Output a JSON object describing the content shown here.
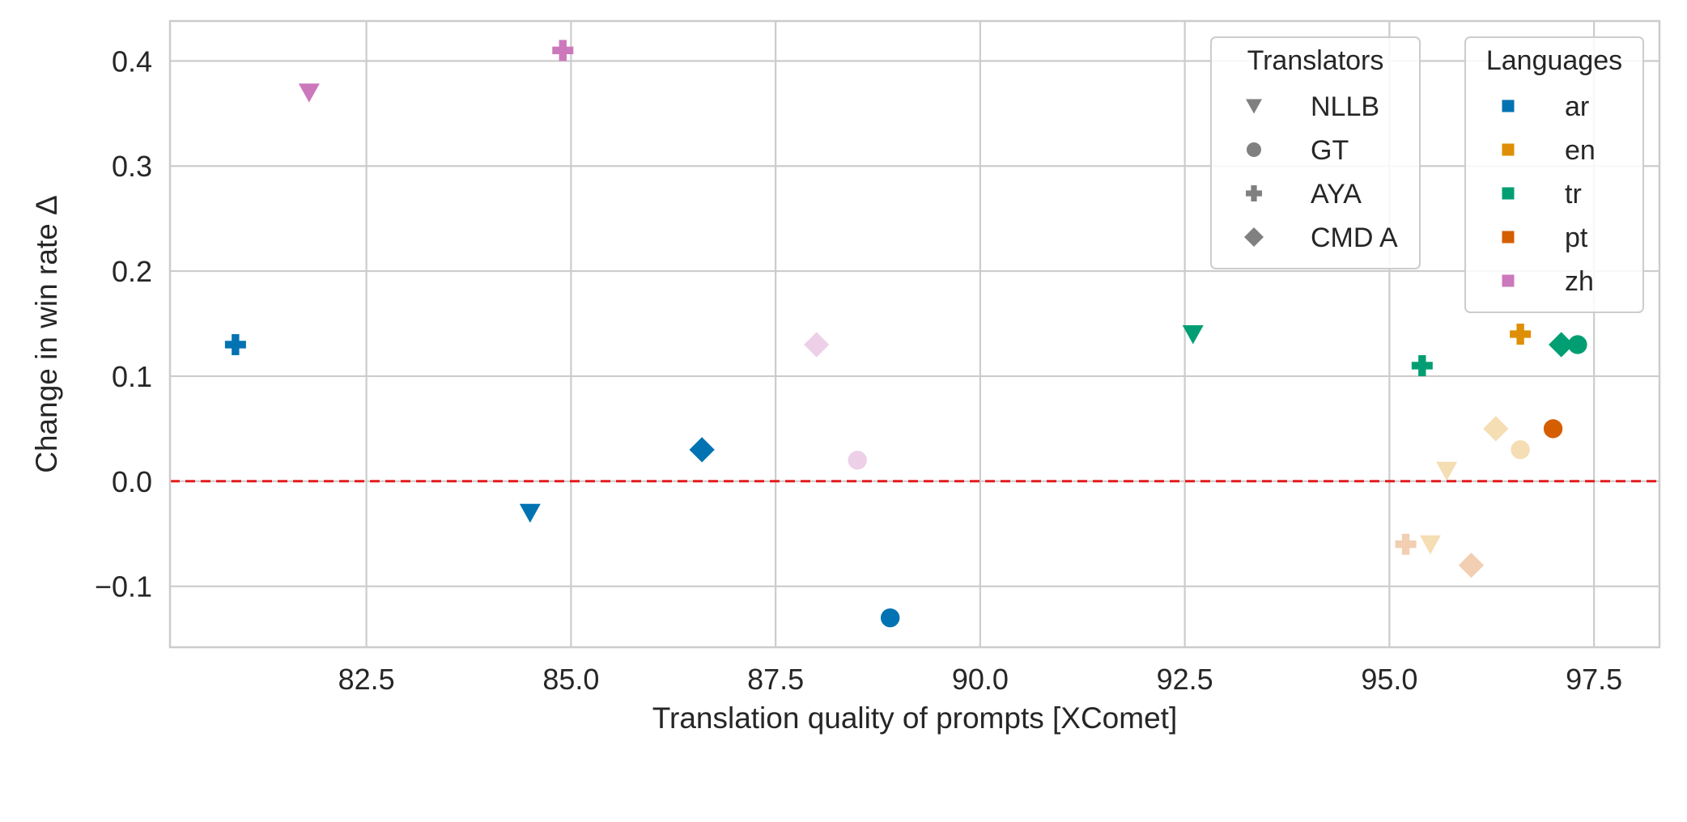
{
  "chart_data": {
    "type": "scatter",
    "title": "",
    "xlabel": "Translation quality of prompts [XComet]",
    "ylabel": "Change in win rate Δ",
    "xlim": [
      80.1,
      98.3
    ],
    "ylim": [
      -0.158,
      0.438
    ],
    "xticks": [
      82.5,
      85.0,
      87.5,
      90.0,
      92.5,
      95.0,
      97.5
    ],
    "xtick_labels": [
      "82.5",
      "85.0",
      "87.5",
      "90.0",
      "92.5",
      "95.0",
      "97.5"
    ],
    "yticks": [
      -0.1,
      0.0,
      0.1,
      0.2,
      0.3,
      0.4
    ],
    "ytick_labels": [
      "−0.1",
      "0.0",
      "0.1",
      "0.2",
      "0.3",
      "0.4"
    ],
    "grid": true,
    "reference_line": {
      "y": 0.0,
      "color": "#e41a1c",
      "style": "dashed"
    },
    "legends": [
      {
        "title": "Translators",
        "placement": "top-right",
        "entries": [
          {
            "label": "NLLB",
            "marker": "triangle-down"
          },
          {
            "label": "GT",
            "marker": "circle"
          },
          {
            "label": "AYA",
            "marker": "plus"
          },
          {
            "label": "CMD A",
            "marker": "diamond"
          }
        ]
      },
      {
        "title": "Languages",
        "placement": "top-right",
        "entries": [
          {
            "label": "ar",
            "color": "#0173b2"
          },
          {
            "label": "en",
            "color": "#de8f05"
          },
          {
            "label": "tr",
            "color": "#029e73"
          },
          {
            "label": "pt",
            "color": "#d55e00"
          },
          {
            "label": "zh",
            "color": "#cc78bc"
          }
        ]
      }
    ],
    "points": [
      {
        "lang": "ar",
        "translator": "AYA",
        "x": 80.9,
        "y": 0.13,
        "color": "#0173b2",
        "alpha": 1.0
      },
      {
        "lang": "ar",
        "translator": "NLLB",
        "x": 84.5,
        "y": -0.03,
        "color": "#0173b2",
        "alpha": 1.0
      },
      {
        "lang": "ar",
        "translator": "CMD A",
        "x": 86.6,
        "y": 0.03,
        "color": "#0173b2",
        "alpha": 1.0
      },
      {
        "lang": "ar",
        "translator": "GT",
        "x": 88.9,
        "y": -0.13,
        "color": "#0173b2",
        "alpha": 1.0
      },
      {
        "lang": "zh",
        "translator": "NLLB",
        "x": 81.8,
        "y": 0.37,
        "color": "#cc78bc",
        "alpha": 1.0
      },
      {
        "lang": "zh",
        "translator": "AYA",
        "x": 84.9,
        "y": 0.41,
        "color": "#cc78bc",
        "alpha": 1.0
      },
      {
        "lang": "zh",
        "translator": "CMD A",
        "x": 88.0,
        "y": 0.13,
        "color": "#cc78bc",
        "alpha": 0.35
      },
      {
        "lang": "zh",
        "translator": "GT",
        "x": 88.5,
        "y": 0.02,
        "color": "#cc78bc",
        "alpha": 0.35
      },
      {
        "lang": "tr",
        "translator": "NLLB",
        "x": 92.6,
        "y": 0.14,
        "color": "#029e73",
        "alpha": 1.0
      },
      {
        "lang": "tr",
        "translator": "AYA",
        "x": 95.4,
        "y": 0.11,
        "color": "#029e73",
        "alpha": 1.0
      },
      {
        "lang": "tr",
        "translator": "CMD A",
        "x": 97.1,
        "y": 0.13,
        "color": "#029e73",
        "alpha": 1.0
      },
      {
        "lang": "tr",
        "translator": "GT",
        "x": 97.3,
        "y": 0.13,
        "color": "#029e73",
        "alpha": 1.0
      },
      {
        "lang": "en",
        "translator": "AYA",
        "x": 96.6,
        "y": 0.14,
        "color": "#de8f05",
        "alpha": 1.0
      },
      {
        "lang": "en",
        "translator": "CMD A",
        "x": 96.3,
        "y": 0.05,
        "color": "#de8f05",
        "alpha": 0.3
      },
      {
        "lang": "en",
        "translator": "GT",
        "x": 96.6,
        "y": 0.03,
        "color": "#de8f05",
        "alpha": 0.3
      },
      {
        "lang": "en",
        "translator": "NLLB",
        "x": 95.7,
        "y": 0.01,
        "color": "#de8f05",
        "alpha": 0.3
      },
      {
        "lang": "en",
        "translator": "NLLB",
        "x": 95.5,
        "y": -0.06,
        "color": "#de8f05",
        "alpha": 0.3
      },
      {
        "lang": "pt",
        "translator": "GT",
        "x": 97.0,
        "y": 0.05,
        "color": "#d55e00",
        "alpha": 1.0
      },
      {
        "lang": "pt",
        "translator": "AYA",
        "x": 95.2,
        "y": -0.06,
        "color": "#d55e00",
        "alpha": 0.3
      },
      {
        "lang": "pt",
        "translator": "CMD A",
        "x": 96.0,
        "y": -0.08,
        "color": "#d55e00",
        "alpha": 0.3
      }
    ]
  }
}
